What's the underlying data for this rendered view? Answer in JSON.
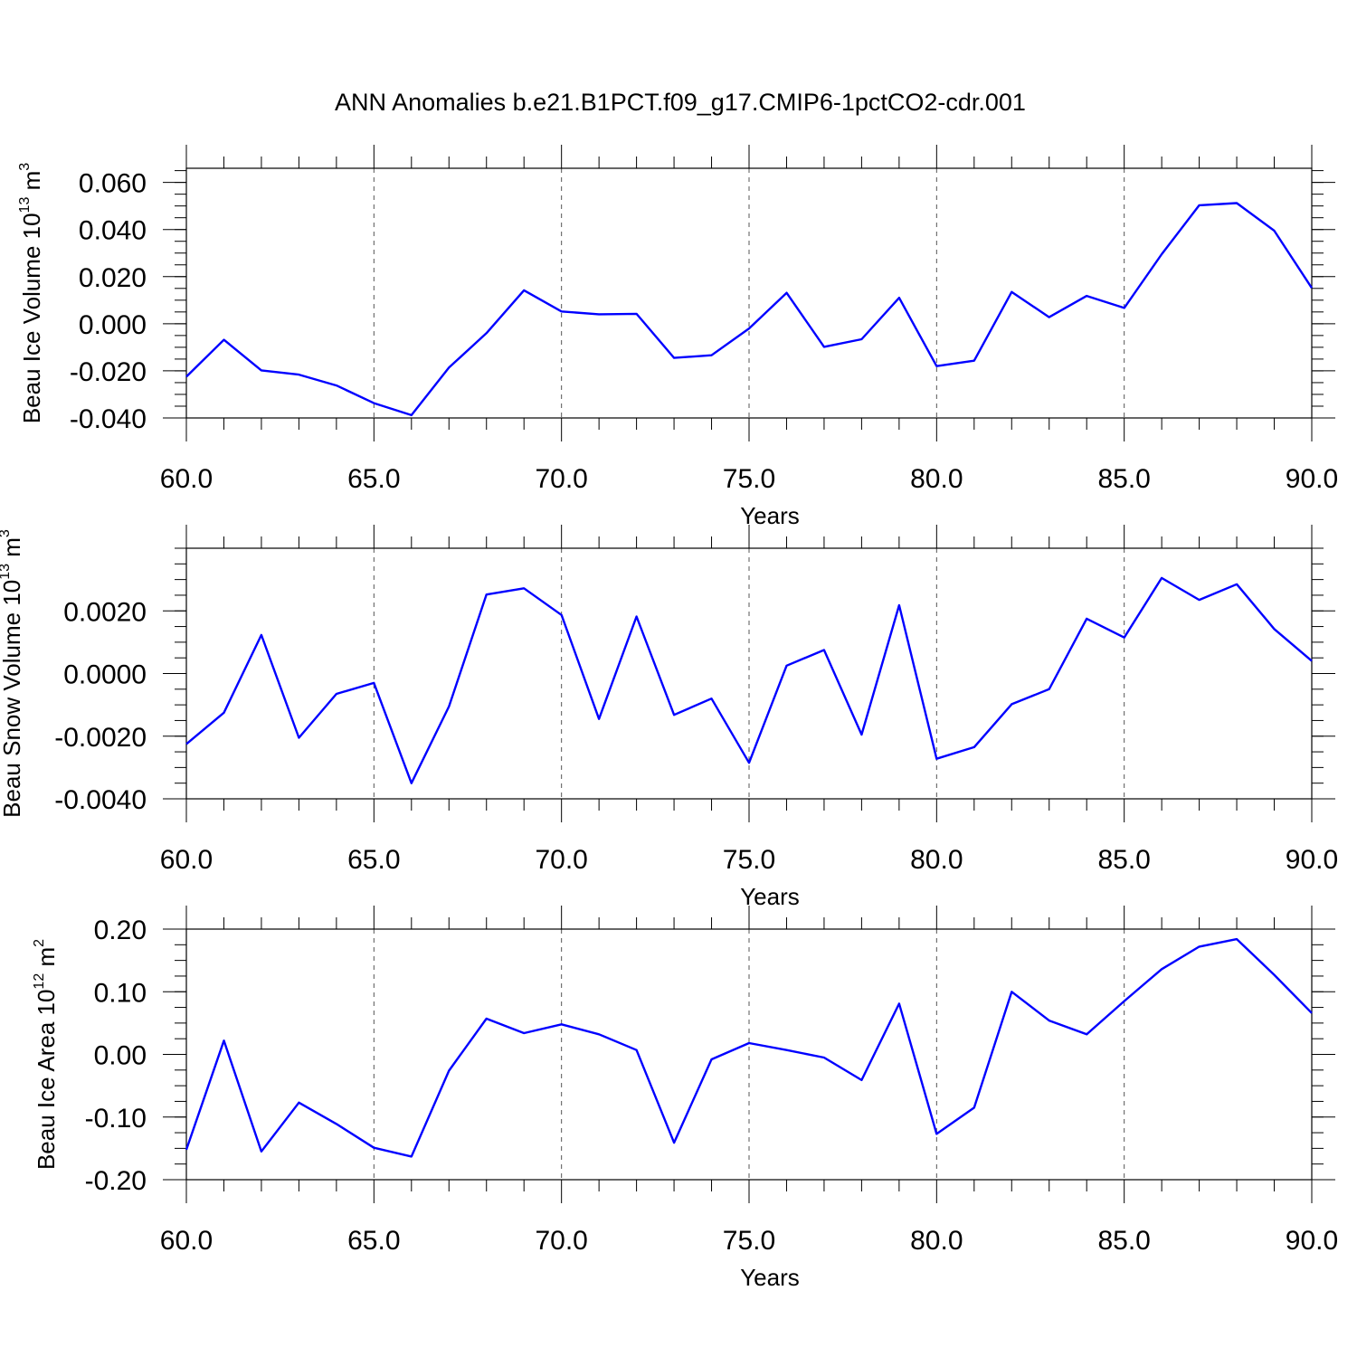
{
  "title": "ANN Anomalies b.e21.B1PCT.f09_g17.CMIP6-1pctCO2-cdr.001",
  "chart_data": [
    {
      "type": "line",
      "ylabel": {
        "text": "Beau Ice Volume 10",
        "sup": "13",
        "unit": " m",
        "unit_sup": "3"
      },
      "xlabel": "Years",
      "xlim": [
        60,
        90
      ],
      "ylim": [
        -0.04,
        0.066
      ],
      "yticks": [
        -0.04,
        -0.02,
        0.0,
        0.02,
        0.04,
        0.06
      ],
      "ytick_labels": [
        "-0.040",
        "-0.020",
        "0.000",
        "0.020",
        "0.040",
        "0.060"
      ],
      "xticks": [
        60,
        65,
        70,
        75,
        80,
        85,
        90
      ],
      "xtick_labels": [
        "60.0",
        "65.0",
        "70.0",
        "75.0",
        "80.0",
        "85.0",
        "90.0"
      ],
      "grid": "dashed vertical at major x ticks",
      "color": "#0000ff",
      "x": [
        60,
        61,
        62,
        63,
        64,
        65,
        66,
        67,
        68,
        69,
        70,
        71,
        72,
        73,
        74,
        75,
        76,
        77,
        78,
        79,
        80,
        81,
        82,
        83,
        84,
        85,
        86,
        87,
        88,
        89,
        90
      ],
      "values": [
        -0.0225,
        -0.0068,
        -0.0198,
        -0.0216,
        -0.0262,
        -0.0337,
        -0.0388,
        -0.0186,
        -0.004,
        0.0142,
        0.0052,
        0.004,
        0.0042,
        -0.0145,
        -0.0134,
        -0.002,
        0.0131,
        -0.0098,
        -0.0066,
        0.011,
        -0.018,
        -0.0157,
        0.0135,
        0.0028,
        0.0118,
        0.0067,
        0.0295,
        0.0503,
        0.0512,
        0.0395,
        0.0152
      ]
    },
    {
      "type": "line",
      "ylabel": {
        "text": "Beau Snow Volume 10",
        "sup": "13",
        "unit": " m",
        "unit_sup": "3"
      },
      "xlabel": "Years",
      "xlim": [
        60,
        90
      ],
      "ylim": [
        -0.004,
        0.004
      ],
      "yticks": [
        -0.004,
        -0.002,
        0.0,
        0.002
      ],
      "ytick_labels": [
        "-0.0040",
        "-0.0020",
        "0.0000",
        "0.0020"
      ],
      "xticks": [
        60,
        65,
        70,
        75,
        80,
        85,
        90
      ],
      "xtick_labels": [
        "60.0",
        "65.0",
        "70.0",
        "75.0",
        "80.0",
        "85.0",
        "90.0"
      ],
      "grid": "dashed vertical at major x ticks",
      "color": "#0000ff",
      "x": [
        60,
        61,
        62,
        63,
        64,
        65,
        66,
        67,
        68,
        69,
        70,
        71,
        72,
        73,
        74,
        75,
        76,
        77,
        78,
        79,
        80,
        81,
        82,
        83,
        84,
        85,
        86,
        87,
        88,
        89,
        90
      ],
      "values": [
        -0.00225,
        -0.00125,
        0.00123,
        -0.00205,
        -0.00065,
        -0.0003,
        -0.0035,
        -0.00105,
        0.00252,
        0.00272,
        0.00187,
        -0.00145,
        0.00182,
        -0.00132,
        -0.0008,
        -0.00285,
        0.00025,
        0.00075,
        -0.00195,
        0.00218,
        -0.00272,
        -0.00235,
        -0.00098,
        -0.0005,
        0.00175,
        0.00115,
        0.00305,
        0.00235,
        0.00285,
        0.00142,
        0.0004
      ]
    },
    {
      "type": "line",
      "ylabel": {
        "text": "Beau Ice Area 10",
        "sup": "12",
        "unit": " m",
        "unit_sup": "2"
      },
      "xlabel": "Years",
      "xlim": [
        60,
        90
      ],
      "ylim": [
        -0.2,
        0.2
      ],
      "yticks": [
        -0.2,
        -0.1,
        0.0,
        0.1,
        0.2
      ],
      "ytick_labels": [
        "-0.20",
        "-0.10",
        "0.00",
        "0.10",
        "0.20"
      ],
      "xticks": [
        60,
        65,
        70,
        75,
        80,
        85,
        90
      ],
      "xtick_labels": [
        "60.0",
        "65.0",
        "70.0",
        "75.0",
        "80.0",
        "85.0",
        "90.0"
      ],
      "grid": "dashed vertical at major x ticks",
      "color": "#0000ff",
      "x": [
        60,
        61,
        62,
        63,
        64,
        65,
        66,
        67,
        68,
        69,
        70,
        71,
        72,
        73,
        74,
        75,
        76,
        77,
        78,
        79,
        80,
        81,
        82,
        83,
        84,
        85,
        86,
        87,
        88,
        89,
        90
      ],
      "values": [
        -0.152,
        0.022,
        -0.155,
        -0.077,
        -0.111,
        -0.149,
        -0.163,
        -0.026,
        0.057,
        0.034,
        0.048,
        0.032,
        0.007,
        -0.141,
        -0.008,
        0.018,
        0.007,
        -0.005,
        -0.041,
        0.081,
        -0.127,
        -0.085,
        0.1,
        0.054,
        0.032,
        0.085,
        0.136,
        0.172,
        0.184,
        0.127,
        0.066
      ]
    }
  ]
}
